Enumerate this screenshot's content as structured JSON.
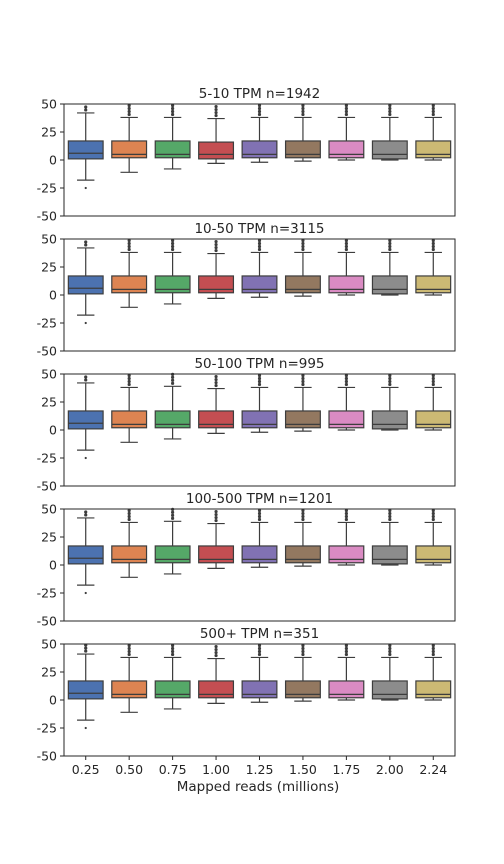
{
  "chart_data": {
    "type": "box",
    "xlabel": "Mapped reads (millions)",
    "categories": [
      "0.25",
      "0.50",
      "0.75",
      "1.00",
      "1.25",
      "1.50",
      "1.75",
      "2.00",
      "2.24"
    ],
    "colors": [
      "#4c72b0",
      "#dd8452",
      "#55a868",
      "#c44e52",
      "#8172b3",
      "#937860",
      "#da8bc3",
      "#8c8c8c",
      "#ccb974"
    ],
    "ylim": [
      -50,
      50
    ],
    "yticks": [
      -50,
      -25,
      0,
      25,
      50
    ],
    "panels": [
      {
        "title": "5-10 TPM n=1942",
        "boxes": [
          {
            "q1": 1,
            "median": 6,
            "q3": 17,
            "whisker_low": -18,
            "whisker_high": 42,
            "outliers_low": [
              -25
            ]
          },
          {
            "q1": 2,
            "median": 5,
            "q3": 17,
            "whisker_low": -11,
            "whisker_high": 38,
            "outliers_low": []
          },
          {
            "q1": 2,
            "median": 5,
            "q3": 17,
            "whisker_low": -8,
            "whisker_high": 38,
            "outliers_low": []
          },
          {
            "q1": 1,
            "median": 5,
            "q3": 16,
            "whisker_low": -3,
            "whisker_high": 37,
            "outliers_low": []
          },
          {
            "q1": 2,
            "median": 5,
            "q3": 17,
            "whisker_low": -2,
            "whisker_high": 38,
            "outliers_low": []
          },
          {
            "q1": 2,
            "median": 5,
            "q3": 17,
            "whisker_low": -1,
            "whisker_high": 38,
            "outliers_low": []
          },
          {
            "q1": 2,
            "median": 5,
            "q3": 17,
            "whisker_low": 0,
            "whisker_high": 38,
            "outliers_low": []
          },
          {
            "q1": 1,
            "median": 5,
            "q3": 17,
            "whisker_low": 0,
            "whisker_high": 38,
            "outliers_low": []
          },
          {
            "q1": 2,
            "median": 5,
            "q3": 17,
            "whisker_low": 0,
            "whisker_high": 38,
            "outliers_low": []
          }
        ]
      },
      {
        "title": "10-50 TPM n=3115",
        "boxes": [
          {
            "q1": 1,
            "median": 6,
            "q3": 17,
            "whisker_low": -18,
            "whisker_high": 42,
            "outliers_low": [
              -25
            ]
          },
          {
            "q1": 2,
            "median": 5,
            "q3": 17,
            "whisker_low": -11,
            "whisker_high": 38,
            "outliers_low": []
          },
          {
            "q1": 2,
            "median": 5,
            "q3": 17,
            "whisker_low": -8,
            "whisker_high": 38,
            "outliers_low": []
          },
          {
            "q1": 2,
            "median": 5,
            "q3": 17,
            "whisker_low": -3,
            "whisker_high": 37,
            "outliers_low": []
          },
          {
            "q1": 2,
            "median": 5,
            "q3": 17,
            "whisker_low": -2,
            "whisker_high": 38,
            "outliers_low": []
          },
          {
            "q1": 2,
            "median": 5,
            "q3": 17,
            "whisker_low": -1,
            "whisker_high": 38,
            "outliers_low": []
          },
          {
            "q1": 2,
            "median": 5,
            "q3": 17,
            "whisker_low": 0,
            "whisker_high": 38,
            "outliers_low": []
          },
          {
            "q1": 1,
            "median": 5,
            "q3": 17,
            "whisker_low": 0,
            "whisker_high": 38,
            "outliers_low": []
          },
          {
            "q1": 2,
            "median": 5,
            "q3": 17,
            "whisker_low": 0,
            "whisker_high": 38,
            "outliers_low": []
          }
        ]
      },
      {
        "title": "50-100 TPM n=995",
        "boxes": [
          {
            "q1": 1,
            "median": 6,
            "q3": 17,
            "whisker_low": -18,
            "whisker_high": 42,
            "outliers_low": [
              -25
            ]
          },
          {
            "q1": 2,
            "median": 5,
            "q3": 17,
            "whisker_low": -11,
            "whisker_high": 38,
            "outliers_low": []
          },
          {
            "q1": 2,
            "median": 5,
            "q3": 17,
            "whisker_low": -8,
            "whisker_high": 39,
            "outliers_low": []
          },
          {
            "q1": 2,
            "median": 5,
            "q3": 17,
            "whisker_low": -3,
            "whisker_high": 37,
            "outliers_low": []
          },
          {
            "q1": 2,
            "median": 5,
            "q3": 17,
            "whisker_low": -2,
            "whisker_high": 38,
            "outliers_low": []
          },
          {
            "q1": 2,
            "median": 5,
            "q3": 17,
            "whisker_low": -1,
            "whisker_high": 38,
            "outliers_low": []
          },
          {
            "q1": 2,
            "median": 5,
            "q3": 17,
            "whisker_low": 0,
            "whisker_high": 38,
            "outliers_low": []
          },
          {
            "q1": 1,
            "median": 5,
            "q3": 17,
            "whisker_low": 0,
            "whisker_high": 38,
            "outliers_low": []
          },
          {
            "q1": 2,
            "median": 5,
            "q3": 17,
            "whisker_low": 0,
            "whisker_high": 38,
            "outliers_low": []
          }
        ]
      },
      {
        "title": "100-500 TPM n=1201",
        "boxes": [
          {
            "q1": 1,
            "median": 6,
            "q3": 17,
            "whisker_low": -18,
            "whisker_high": 42,
            "outliers_low": [
              -25
            ]
          },
          {
            "q1": 2,
            "median": 5,
            "q3": 17,
            "whisker_low": -11,
            "whisker_high": 38,
            "outliers_low": []
          },
          {
            "q1": 2,
            "median": 5,
            "q3": 17,
            "whisker_low": -8,
            "whisker_high": 39,
            "outliers_low": []
          },
          {
            "q1": 2,
            "median": 5,
            "q3": 17,
            "whisker_low": -3,
            "whisker_high": 37,
            "outliers_low": []
          },
          {
            "q1": 2,
            "median": 5,
            "q3": 17,
            "whisker_low": -2,
            "whisker_high": 38,
            "outliers_low": []
          },
          {
            "q1": 2,
            "median": 5,
            "q3": 17,
            "whisker_low": -1,
            "whisker_high": 38,
            "outliers_low": []
          },
          {
            "q1": 2,
            "median": 5,
            "q3": 17,
            "whisker_low": 0,
            "whisker_high": 38,
            "outliers_low": []
          },
          {
            "q1": 1,
            "median": 5,
            "q3": 17,
            "whisker_low": 0,
            "whisker_high": 38,
            "outliers_low": []
          },
          {
            "q1": 2,
            "median": 5,
            "q3": 17,
            "whisker_low": 0,
            "whisker_high": 38,
            "outliers_low": []
          }
        ]
      },
      {
        "title": "500+ TPM n=351",
        "boxes": [
          {
            "q1": 1,
            "median": 6,
            "q3": 17,
            "whisker_low": -18,
            "whisker_high": 41,
            "outliers_low": [
              -25
            ]
          },
          {
            "q1": 2,
            "median": 5,
            "q3": 17,
            "whisker_low": -11,
            "whisker_high": 38,
            "outliers_low": []
          },
          {
            "q1": 2,
            "median": 5,
            "q3": 17,
            "whisker_low": -8,
            "whisker_high": 38,
            "outliers_low": []
          },
          {
            "q1": 2,
            "median": 5,
            "q3": 17,
            "whisker_low": -3,
            "whisker_high": 37,
            "outliers_low": []
          },
          {
            "q1": 2,
            "median": 5,
            "q3": 17,
            "whisker_low": -2,
            "whisker_high": 38,
            "outliers_low": []
          },
          {
            "q1": 2,
            "median": 5,
            "q3": 17,
            "whisker_low": -1,
            "whisker_high": 38,
            "outliers_low": []
          },
          {
            "q1": 2,
            "median": 5,
            "q3": 17,
            "whisker_low": 0,
            "whisker_high": 38,
            "outliers_low": []
          },
          {
            "q1": 1,
            "median": 5,
            "q3": 17,
            "whisker_low": 0,
            "whisker_high": 38,
            "outliers_low": []
          },
          {
            "q1": 2,
            "median": 5,
            "q3": 17,
            "whisker_low": 0,
            "whisker_high": 38,
            "outliers_low": []
          }
        ]
      }
    ]
  }
}
